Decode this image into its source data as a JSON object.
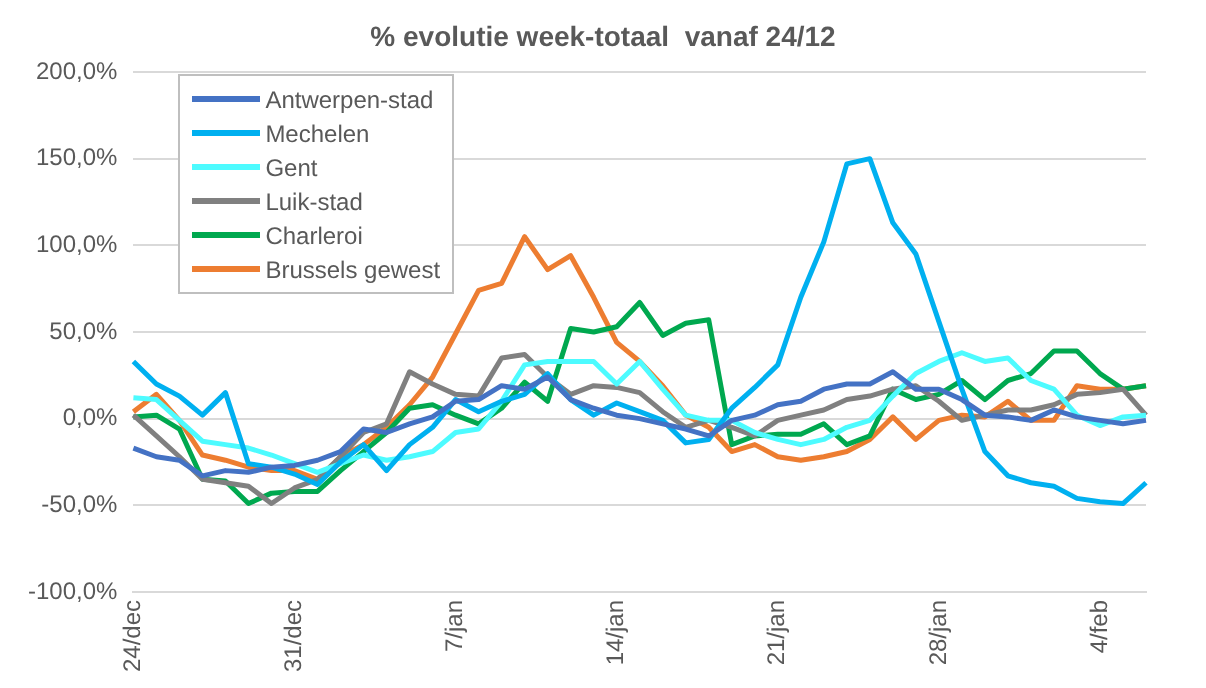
{
  "chart_data": {
    "type": "line",
    "title": "% evolutie week-totaal  vanaf 24/12",
    "categories": [
      "24/dec",
      null,
      null,
      null,
      null,
      null,
      null,
      "31/dec",
      null,
      null,
      null,
      null,
      null,
      null,
      "7/jan",
      null,
      null,
      null,
      null,
      null,
      null,
      "14/jan",
      null,
      null,
      null,
      null,
      null,
      null,
      "21/jan",
      null,
      null,
      null,
      null,
      null,
      null,
      "28/jan",
      null,
      null,
      null,
      null,
      null,
      null,
      "4/feb",
      null,
      null
    ],
    "series": [
      {
        "name": "Antwerpen-stad",
        "color": "#4472c4",
        "values": [
          -17,
          -22,
          -24,
          -33,
          -30,
          -31,
          -28,
          -27,
          -24,
          -19,
          -6,
          -8,
          -3,
          1,
          10,
          11,
          19,
          17,
          24,
          11,
          6,
          2,
          0,
          -3,
          -6,
          -10,
          -1,
          2,
          8,
          10,
          17,
          20,
          20,
          27,
          17,
          17,
          11,
          2,
          1,
          -1,
          5,
          1,
          -1,
          -3,
          -1
        ]
      },
      {
        "name": "Mechelen",
        "color": "#00b0f0",
        "values": [
          33,
          20,
          13,
          2,
          15,
          -26,
          -28,
          -32,
          -38,
          -25,
          -15,
          -30,
          -15,
          -5,
          11,
          4,
          10,
          14,
          26,
          11,
          2,
          9,
          4,
          -1,
          -14,
          -12,
          6,
          18,
          31,
          70,
          102,
          147,
          150,
          113,
          95,
          56,
          17,
          -19,
          -33,
          -37,
          -39,
          -46,
          -48,
          -49,
          -37
        ]
      },
      {
        "name": "Gent",
        "color": "#4dfbff",
        "values": [
          12,
          11,
          -1,
          -13,
          -15,
          -17,
          -21,
          -26,
          -31,
          -26,
          -21,
          -24,
          -22,
          -19,
          -8,
          -6,
          10,
          31,
          33,
          33,
          33,
          20,
          33,
          17,
          2,
          -1,
          -1,
          -8,
          -12,
          -15,
          -12,
          -5,
          -1,
          13,
          26,
          33,
          38,
          33,
          35,
          22,
          17,
          2,
          -4,
          1,
          2
        ]
      },
      {
        "name": "Luik-stad",
        "color": "#808080",
        "values": [
          2,
          -10,
          -22,
          -35,
          -37,
          -39,
          -49,
          -40,
          -35,
          -22,
          -8,
          -3,
          27,
          20,
          14,
          13,
          35,
          37,
          24,
          14,
          19,
          18,
          15,
          4,
          -5,
          -1,
          -5,
          -10,
          -1,
          2,
          5,
          11,
          13,
          17,
          19,
          10,
          -1,
          2,
          5,
          5,
          8,
          14,
          15,
          17,
          2
        ]
      },
      {
        "name": "Charleroi",
        "color": "#00a84f",
        "values": [
          1,
          2,
          -6,
          -35,
          -36,
          -49,
          -43,
          -42,
          -42,
          -30,
          -19,
          -8,
          6,
          8,
          2,
          -3,
          6,
          21,
          10,
          52,
          50,
          53,
          67,
          48,
          55,
          57,
          -15,
          -10,
          -9,
          -9,
          -3,
          -15,
          -10,
          17,
          11,
          14,
          22,
          11,
          22,
          26,
          39,
          39,
          26,
          17,
          19
        ]
      },
      {
        "name": "Brussels gewest",
        "color": "#ed7d31",
        "values": [
          4,
          14,
          -1,
          -21,
          -24,
          -28,
          -30,
          -30,
          -35,
          -22,
          -15,
          -5,
          8,
          24,
          49,
          74,
          78,
          105,
          86,
          94,
          70,
          44,
          33,
          19,
          2,
          -5,
          -19,
          -15,
          -22,
          -24,
          -22,
          -19,
          -12,
          1,
          -12,
          -1,
          2,
          1,
          10,
          -1,
          -1,
          19,
          17,
          17,
          19
        ]
      }
    ],
    "ylim": [
      -100,
      200
    ],
    "yticks": [
      {
        "value": -100,
        "label": "-100,0%"
      },
      {
        "value": -50,
        "label": "-50,0%"
      },
      {
        "value": 0,
        "label": "0,0%"
      },
      {
        "value": 50,
        "label": "50,0%"
      },
      {
        "value": 100,
        "label": "100,0%"
      },
      {
        "value": 150,
        "label": "150,0%"
      },
      {
        "value": 200,
        "label": "200,0%"
      }
    ],
    "grid": "y",
    "legend": "top left",
    "marker": "none",
    "line_style": "solid"
  }
}
